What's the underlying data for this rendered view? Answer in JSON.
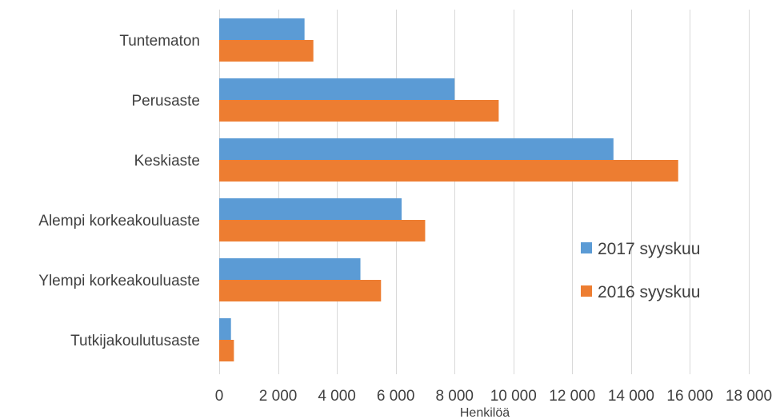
{
  "chart_data": {
    "type": "bar",
    "orientation": "horizontal",
    "categories": [
      "Tuntematon",
      "Perusaste",
      "Keskiaste",
      "Alempi korkeakouluaste",
      "Ylempi korkeakouluaste",
      "Tutkijakoulutusaste"
    ],
    "series": [
      {
        "name": "2017 syyskuu",
        "color": "#5b9bd5",
        "values": [
          2900,
          8000,
          13400,
          6200,
          4800,
          400
        ]
      },
      {
        "name": "2016 syyskuu",
        "color": "#ed7d31",
        "values": [
          3200,
          9500,
          15600,
          7000,
          5500,
          500
        ]
      }
    ],
    "xlabel": "Henkilöä",
    "xlim": [
      0,
      18000
    ],
    "xticks": [
      0,
      2000,
      4000,
      6000,
      8000,
      10000,
      12000,
      14000,
      16000,
      18000
    ],
    "xtick_labels": [
      "0",
      "2 000",
      "4 000",
      "6 000",
      "8 000",
      "10 000",
      "12 000",
      "14 000",
      "16 000",
      "18 000"
    ],
    "grid": "vertical",
    "legend_position": "right"
  }
}
